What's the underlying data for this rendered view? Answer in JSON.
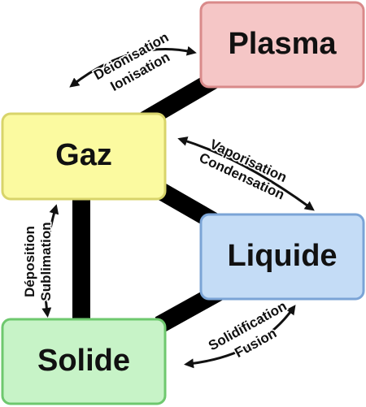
{
  "states": {
    "plasma": {
      "label": "Plasma",
      "fill": "#f5c6c6",
      "border": "#d98a8a"
    },
    "gaz": {
      "label": "Gaz",
      "fill": "#fbfaa0",
      "border": "#d8d46a"
    },
    "liquide": {
      "label": "Liquide",
      "fill": "#c4dcf6",
      "border": "#7ba4d6"
    },
    "solide": {
      "label": "Solide",
      "fill": "#c7f3c7",
      "border": "#6ec86e"
    }
  },
  "transitions": {
    "gaz_plasma": {
      "forward": "Ionisation",
      "backward": "Déionisation"
    },
    "gaz_liquide": {
      "forward": "Condensation",
      "backward": "Vaporisation"
    },
    "liquide_solide": {
      "forward": "Solidification",
      "backward": "Fusion"
    },
    "gaz_solide": {
      "forward": "Déposition",
      "backward": "Sublimation"
    }
  },
  "colors": {
    "connector": "#000000",
    "arrow": "#111111"
  }
}
